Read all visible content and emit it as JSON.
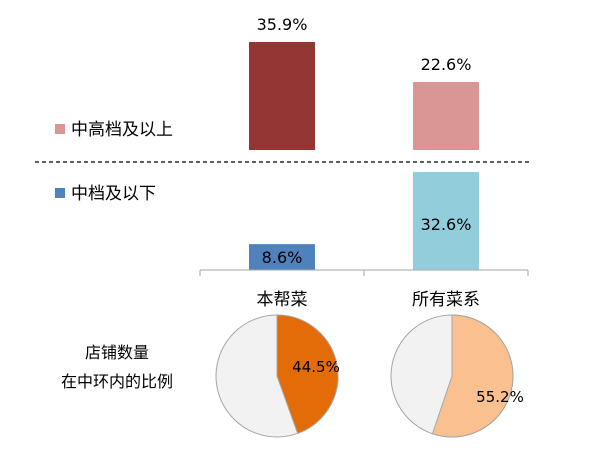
{
  "chart_data": [
    {
      "type": "bar",
      "categories": [
        "本帮菜",
        "所有菜系"
      ],
      "series": [
        {
          "name": "中高档及以上",
          "values": [
            35.9,
            22.6
          ],
          "colors": [
            "#943634",
            "#da9694"
          ]
        },
        {
          "name": "中档及以下",
          "values": [
            8.6,
            32.6
          ],
          "colors": [
            "#4f81bd",
            "#92cddc"
          ]
        }
      ],
      "unit": "%",
      "data_labels": [
        [
          "35.9%",
          "22.6%"
        ],
        [
          "8.6%",
          "32.6%"
        ]
      ]
    },
    {
      "type": "pie",
      "row_label": "店铺数量\n在中环内的比例",
      "row_label_lines": [
        "店铺数量",
        "在中环内的比例"
      ],
      "pies": [
        {
          "category": "本帮菜",
          "value": 44.5,
          "label": "44.5%",
          "color": "#e36c09",
          "rest_color": "#f2f2f2"
        },
        {
          "category": "所有菜系",
          "value": 55.2,
          "label": "55.2%",
          "color": "#fac090",
          "rest_color": "#f2f2f2"
        }
      ]
    }
  ]
}
